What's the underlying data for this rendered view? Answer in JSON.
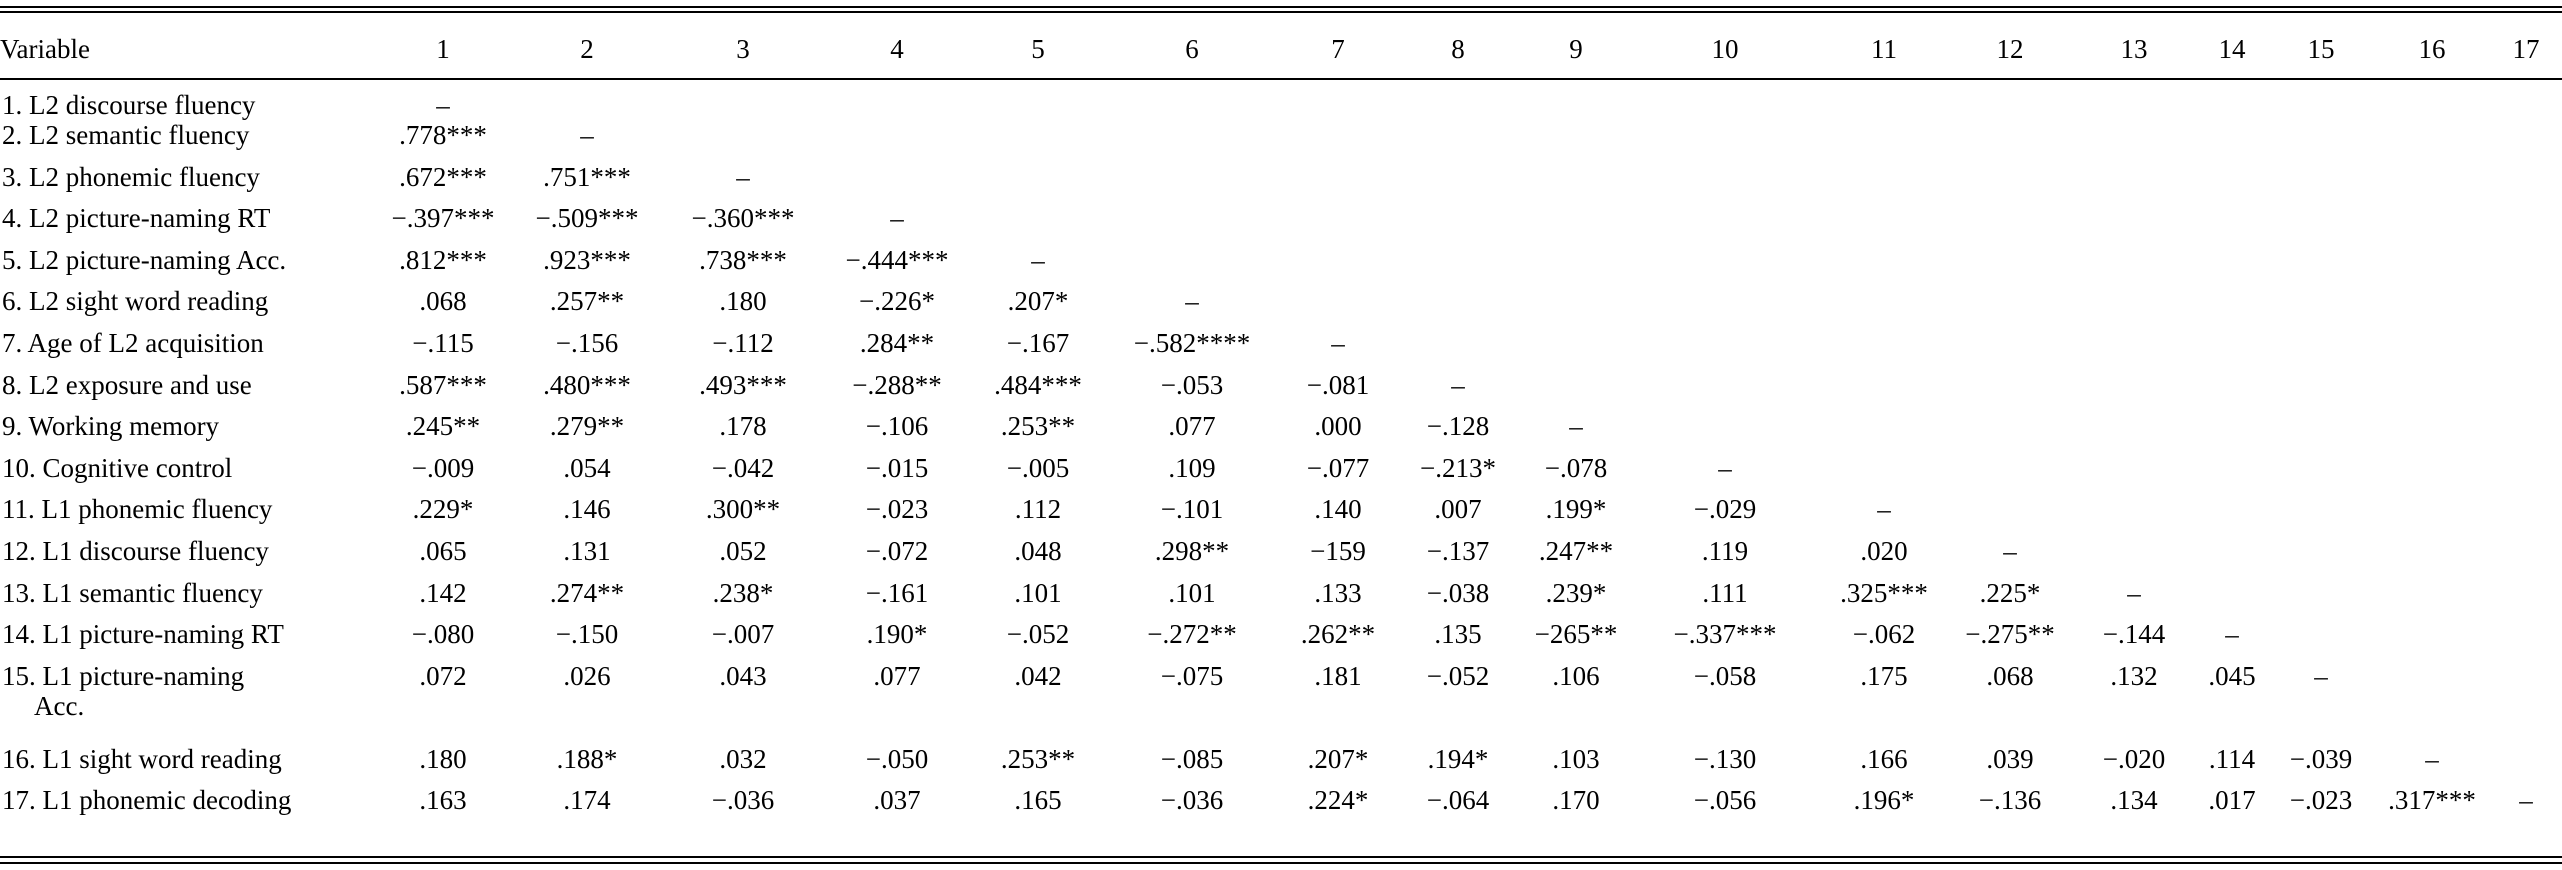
{
  "table": {
    "header_label": "Variable",
    "columns": [
      "1",
      "2",
      "3",
      "4",
      "5",
      "6",
      "7",
      "8",
      "9",
      "10",
      "11",
      "12",
      "13",
      "14",
      "15",
      "16",
      "17"
    ],
    "rows": [
      {
        "label": "1. L2 discourse fluency",
        "cells": [
          "–"
        ]
      },
      {
        "label": "2. L2 semantic fluency",
        "cells": [
          ".778***",
          "–"
        ]
      },
      {
        "label": "3. L2 phonemic fluency",
        "cells": [
          ".672***",
          ".751***",
          "–"
        ]
      },
      {
        "label": "4. L2 picture-naming RT",
        "cells": [
          "−.397***",
          "−.509***",
          "−.360***",
          "–"
        ]
      },
      {
        "label": "5. L2 picture-naming Acc.",
        "cells": [
          ".812***",
          ".923***",
          ".738***",
          "−.444***",
          "–"
        ]
      },
      {
        "label": "6. L2 sight word reading",
        "cells": [
          ".068",
          ".257**",
          ".180",
          "−.226*",
          ".207*",
          "–"
        ]
      },
      {
        "label": "7. Age of L2 acquisition",
        "cells": [
          "−.115",
          "−.156",
          "−.112",
          ".284**",
          "−.167",
          "−.582****",
          "–"
        ]
      },
      {
        "label": "8. L2 exposure and use",
        "cells": [
          ".587***",
          ".480***",
          ".493***",
          "−.288**",
          ".484***",
          "−.053",
          "−.081",
          "–"
        ]
      },
      {
        "label": "9. Working memory",
        "cells": [
          ".245**",
          ".279**",
          ".178",
          "−.106",
          ".253**",
          ".077",
          ".000",
          "−.128",
          "–"
        ]
      },
      {
        "label": "10. Cognitive control",
        "cells": [
          "−.009",
          ".054",
          "−.042",
          "−.015",
          "−.005",
          ".109",
          "−.077",
          "−.213*",
          "−.078",
          "–"
        ]
      },
      {
        "label": "11. L1 phonemic fluency",
        "cells": [
          ".229*",
          ".146",
          ".300**",
          "−.023",
          ".112",
          "−.101",
          ".140",
          ".007",
          ".199*",
          "−.029",
          "–"
        ]
      },
      {
        "label": "12. L1 discourse fluency",
        "cells": [
          ".065",
          ".131",
          ".052",
          "−.072",
          ".048",
          ".298**",
          "−159",
          "−.137",
          ".247**",
          ".119",
          ".020",
          "–"
        ]
      },
      {
        "label": "13. L1 semantic fluency",
        "cells": [
          ".142",
          ".274**",
          ".238*",
          "−.161",
          ".101",
          ".101",
          ".133",
          "−.038",
          ".239*",
          ".111",
          ".325***",
          ".225*",
          "–"
        ]
      },
      {
        "label": "14. L1 picture-naming RT",
        "cells": [
          "−.080",
          "−.150",
          "−.007",
          ".190*",
          "−.052",
          "−.272**",
          ".262**",
          ".135",
          "−265**",
          "−.337***",
          "−.062",
          "−.275**",
          "−.144",
          "–"
        ]
      },
      {
        "label": "15. L1 picture-naming",
        "label2": "Acc.",
        "cells": [
          ".072",
          ".026",
          ".043",
          ".077",
          ".042",
          "−.075",
          ".181",
          "−.052",
          ".106",
          "−.058",
          ".175",
          ".068",
          ".132",
          ".045",
          "–"
        ]
      },
      {
        "label": "16. L1 sight word reading",
        "cells": [
          ".180",
          ".188*",
          ".032",
          "−.050",
          ".253**",
          "−.085",
          ".207*",
          ".194*",
          ".103",
          "−.130",
          ".166",
          ".039",
          "−.020",
          ".114",
          "−.039",
          "–"
        ]
      },
      {
        "label": "17. L1 phonemic decoding",
        "cells": [
          ".163",
          ".174",
          "−.036",
          ".037",
          ".165",
          "−.036",
          ".224*",
          "−.064",
          ".170",
          "−.056",
          ".196*",
          "−.136",
          ".134",
          ".017",
          "−.023",
          ".317***",
          "–"
        ]
      }
    ]
  }
}
